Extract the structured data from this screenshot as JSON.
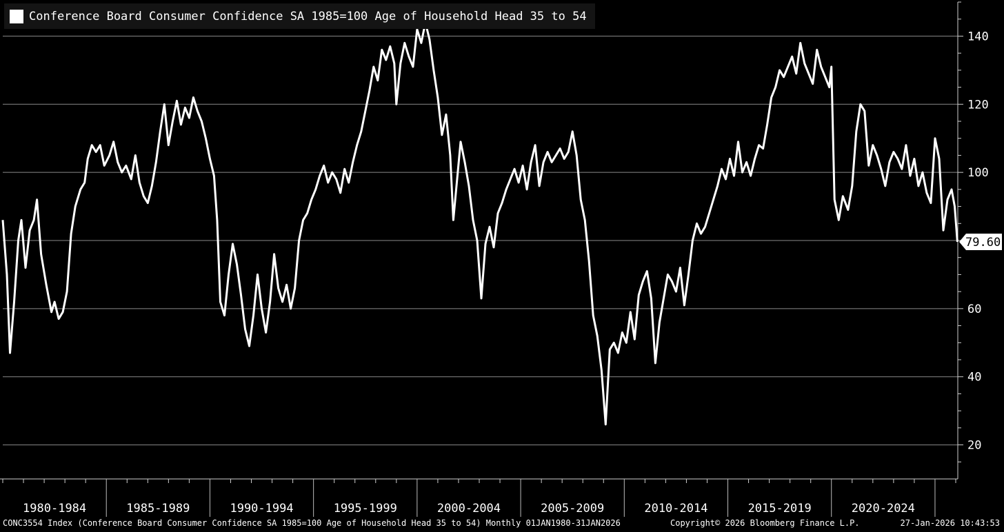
{
  "legend": {
    "label": "Conference Board Consumer Confidence SA 1985=100 Age of Household Head 35 to 54",
    "color": "#ffffff"
  },
  "last_value_label": "79.60",
  "footer": {
    "source": "CONC3554 Index (Conference Board Consumer Confidence SA 1985=100 Age of Household Head 35 to 54) Monthly 01JAN1980-31JAN2026",
    "copyright": "Copyright© 2026 Bloomberg Finance L.P.",
    "timestamp": "27-Jan-2026 10:43:53"
  },
  "chart_data": {
    "type": "line",
    "title": "",
    "xlabel": "",
    "ylabel": "",
    "x_categories": [
      "1980-1984",
      "1985-1989",
      "1990-1994",
      "1995-1999",
      "2000-2004",
      "2005-2009",
      "2010-2014",
      "2015-2019",
      "2020-2024"
    ],
    "y_ticks": [
      20,
      40,
      60,
      80,
      100,
      120,
      140
    ],
    "ylim": [
      10,
      150
    ],
    "xlim": [
      1980.0,
      2026.1
    ],
    "grid": true,
    "legend_position": "top-left",
    "series": [
      {
        "name": "Conference Board Consumer Confidence SA 1985=100 Age of Household Head 35 to 54",
        "color": "#ffffff",
        "last_value": 79.6,
        "points": [
          [
            1980.0,
            86
          ],
          [
            1980.2,
            70
          ],
          [
            1980.35,
            47
          ],
          [
            1980.55,
            62
          ],
          [
            1980.75,
            80
          ],
          [
            1980.9,
            86
          ],
          [
            1981.1,
            72
          ],
          [
            1981.3,
            83
          ],
          [
            1981.5,
            86
          ],
          [
            1981.65,
            92
          ],
          [
            1981.85,
            76
          ],
          [
            1982.1,
            67
          ],
          [
            1982.35,
            59
          ],
          [
            1982.5,
            62
          ],
          [
            1982.7,
            57
          ],
          [
            1982.9,
            59
          ],
          [
            1983.1,
            65
          ],
          [
            1983.3,
            82
          ],
          [
            1983.5,
            90
          ],
          [
            1983.75,
            95
          ],
          [
            1983.95,
            97
          ],
          [
            1984.1,
            104
          ],
          [
            1984.3,
            108
          ],
          [
            1984.5,
            106
          ],
          [
            1984.7,
            108
          ],
          [
            1984.9,
            102
          ],
          [
            1985.15,
            105
          ],
          [
            1985.35,
            109
          ],
          [
            1985.55,
            103
          ],
          [
            1985.75,
            100
          ],
          [
            1985.95,
            102
          ],
          [
            1986.2,
            98
          ],
          [
            1986.4,
            105
          ],
          [
            1986.6,
            97
          ],
          [
            1986.8,
            93
          ],
          [
            1987.0,
            91
          ],
          [
            1987.2,
            96
          ],
          [
            1987.4,
            103
          ],
          [
            1987.6,
            112
          ],
          [
            1987.8,
            120
          ],
          [
            1988.0,
            108
          ],
          [
            1988.2,
            115
          ],
          [
            1988.4,
            121
          ],
          [
            1988.6,
            114
          ],
          [
            1988.8,
            119
          ],
          [
            1989.0,
            116
          ],
          [
            1989.2,
            122
          ],
          [
            1989.4,
            118
          ],
          [
            1989.6,
            115
          ],
          [
            1989.8,
            110
          ],
          [
            1990.0,
            104
          ],
          [
            1990.2,
            99
          ],
          [
            1990.35,
            86
          ],
          [
            1990.5,
            62
          ],
          [
            1990.7,
            58
          ],
          [
            1990.9,
            70
          ],
          [
            1991.1,
            79
          ],
          [
            1991.3,
            73
          ],
          [
            1991.5,
            64
          ],
          [
            1991.7,
            54
          ],
          [
            1991.9,
            49
          ],
          [
            1992.1,
            58
          ],
          [
            1992.3,
            70
          ],
          [
            1992.5,
            60
          ],
          [
            1992.7,
            53
          ],
          [
            1992.9,
            62
          ],
          [
            1993.1,
            76
          ],
          [
            1993.3,
            66
          ],
          [
            1993.5,
            62
          ],
          [
            1993.7,
            67
          ],
          [
            1993.9,
            60
          ],
          [
            1994.1,
            66
          ],
          [
            1994.3,
            80
          ],
          [
            1994.5,
            86
          ],
          [
            1994.7,
            88
          ],
          [
            1994.9,
            92
          ],
          [
            1995.1,
            95
          ],
          [
            1995.3,
            99
          ],
          [
            1995.5,
            102
          ],
          [
            1995.7,
            97
          ],
          [
            1995.9,
            100
          ],
          [
            1996.1,
            98
          ],
          [
            1996.3,
            94
          ],
          [
            1996.5,
            101
          ],
          [
            1996.7,
            97
          ],
          [
            1996.9,
            103
          ],
          [
            1997.1,
            108
          ],
          [
            1997.3,
            112
          ],
          [
            1997.5,
            118
          ],
          [
            1997.7,
            124
          ],
          [
            1997.9,
            131
          ],
          [
            1998.1,
            127
          ],
          [
            1998.3,
            136
          ],
          [
            1998.5,
            133
          ],
          [
            1998.7,
            137
          ],
          [
            1998.9,
            132
          ],
          [
            1999.0,
            120
          ],
          [
            1999.2,
            132
          ],
          [
            1999.4,
            138
          ],
          [
            1999.6,
            134
          ],
          [
            1999.8,
            131
          ],
          [
            2000.0,
            142
          ],
          [
            2000.2,
            138
          ],
          [
            2000.4,
            144
          ],
          [
            2000.6,
            139
          ],
          [
            2000.8,
            130
          ],
          [
            2001.0,
            122
          ],
          [
            2001.2,
            111
          ],
          [
            2001.4,
            117
          ],
          [
            2001.6,
            105
          ],
          [
            2001.75,
            86
          ],
          [
            2001.9,
            96
          ],
          [
            2002.1,
            109
          ],
          [
            2002.3,
            103
          ],
          [
            2002.5,
            96
          ],
          [
            2002.7,
            86
          ],
          [
            2002.9,
            80
          ],
          [
            2003.1,
            63
          ],
          [
            2003.3,
            79
          ],
          [
            2003.5,
            84
          ],
          [
            2003.7,
            78
          ],
          [
            2003.9,
            88
          ],
          [
            2004.1,
            91
          ],
          [
            2004.3,
            95
          ],
          [
            2004.5,
            98
          ],
          [
            2004.7,
            101
          ],
          [
            2004.9,
            97
          ],
          [
            2005.1,
            102
          ],
          [
            2005.3,
            95
          ],
          [
            2005.5,
            103
          ],
          [
            2005.7,
            108
          ],
          [
            2005.9,
            96
          ],
          [
            2006.1,
            103
          ],
          [
            2006.3,
            106
          ],
          [
            2006.5,
            103
          ],
          [
            2006.7,
            105
          ],
          [
            2006.9,
            107
          ],
          [
            2007.1,
            104
          ],
          [
            2007.3,
            106
          ],
          [
            2007.5,
            112
          ],
          [
            2007.7,
            105
          ],
          [
            2007.9,
            92
          ],
          [
            2008.1,
            86
          ],
          [
            2008.3,
            74
          ],
          [
            2008.5,
            58
          ],
          [
            2008.7,
            52
          ],
          [
            2008.9,
            42
          ],
          [
            2009.1,
            26
          ],
          [
            2009.3,
            48
          ],
          [
            2009.5,
            50
          ],
          [
            2009.7,
            47
          ],
          [
            2009.9,
            53
          ],
          [
            2010.1,
            50
          ],
          [
            2010.3,
            59
          ],
          [
            2010.5,
            51
          ],
          [
            2010.7,
            64
          ],
          [
            2010.9,
            68
          ],
          [
            2011.1,
            71
          ],
          [
            2011.3,
            63
          ],
          [
            2011.5,
            44
          ],
          [
            2011.7,
            56
          ],
          [
            2011.9,
            63
          ],
          [
            2012.1,
            70
          ],
          [
            2012.3,
            68
          ],
          [
            2012.5,
            65
          ],
          [
            2012.7,
            72
          ],
          [
            2012.9,
            61
          ],
          [
            2013.1,
            70
          ],
          [
            2013.3,
            80
          ],
          [
            2013.5,
            85
          ],
          [
            2013.7,
            82
          ],
          [
            2013.9,
            84
          ],
          [
            2014.1,
            88
          ],
          [
            2014.3,
            92
          ],
          [
            2014.5,
            96
          ],
          [
            2014.7,
            101
          ],
          [
            2014.9,
            98
          ],
          [
            2015.1,
            104
          ],
          [
            2015.3,
            99
          ],
          [
            2015.5,
            109
          ],
          [
            2015.7,
            100
          ],
          [
            2015.9,
            103
          ],
          [
            2016.1,
            99
          ],
          [
            2016.3,
            104
          ],
          [
            2016.5,
            108
          ],
          [
            2016.7,
            107
          ],
          [
            2016.9,
            114
          ],
          [
            2017.1,
            122
          ],
          [
            2017.3,
            125
          ],
          [
            2017.5,
            130
          ],
          [
            2017.7,
            128
          ],
          [
            2017.9,
            131
          ],
          [
            2018.1,
            134
          ],
          [
            2018.3,
            129
          ],
          [
            2018.5,
            138
          ],
          [
            2018.7,
            132
          ],
          [
            2018.9,
            129
          ],
          [
            2019.1,
            126
          ],
          [
            2019.3,
            136
          ],
          [
            2019.5,
            131
          ],
          [
            2019.7,
            128
          ],
          [
            2019.9,
            125
          ],
          [
            2020.0,
            131
          ],
          [
            2020.15,
            92
          ],
          [
            2020.35,
            86
          ],
          [
            2020.55,
            93
          ],
          [
            2020.8,
            89
          ],
          [
            2021.0,
            96
          ],
          [
            2021.2,
            112
          ],
          [
            2021.4,
            120
          ],
          [
            2021.6,
            118
          ],
          [
            2021.8,
            102
          ],
          [
            2022.0,
            108
          ],
          [
            2022.2,
            105
          ],
          [
            2022.4,
            101
          ],
          [
            2022.6,
            96
          ],
          [
            2022.8,
            103
          ],
          [
            2023.0,
            106
          ],
          [
            2023.2,
            104
          ],
          [
            2023.4,
            101
          ],
          [
            2023.6,
            108
          ],
          [
            2023.8,
            99
          ],
          [
            2024.0,
            104
          ],
          [
            2024.2,
            96
          ],
          [
            2024.4,
            100
          ],
          [
            2024.6,
            94
          ],
          [
            2024.8,
            91
          ],
          [
            2025.0,
            110
          ],
          [
            2025.2,
            104
          ],
          [
            2025.4,
            83
          ],
          [
            2025.6,
            92
          ],
          [
            2025.8,
            95
          ],
          [
            2025.95,
            90
          ],
          [
            2026.08,
            79.6
          ]
        ]
      }
    ]
  }
}
